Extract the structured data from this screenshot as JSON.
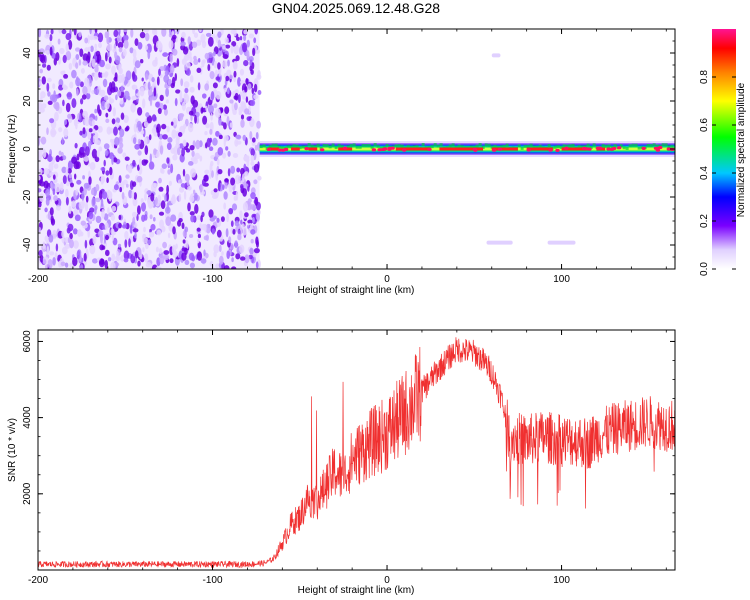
{
  "figure_title": "GN04.2025.069.12.48.G28",
  "chart_data": [
    {
      "type": "heatmap",
      "xlabel": "Height of straight line (km)",
      "ylabel": "Frequency (Hz)",
      "xlim": [
        -200,
        165
      ],
      "ylim": [
        -50,
        50
      ],
      "xticks": [
        -200,
        -100,
        0,
        100
      ],
      "yticks": [
        -40,
        -20,
        0,
        20,
        40
      ],
      "colorbar": {
        "label": "Normalized spectral amplitude",
        "range": [
          0,
          1
        ],
        "ticks": [
          "0.0",
          "0.2",
          "0.4",
          "0.6",
          "0.8"
        ],
        "colormap": [
          "#ffffff",
          "#7a00ff",
          "#0000ff",
          "#00c8ff",
          "#00ff00",
          "#ffff00",
          "#ff8000",
          "#ff0000",
          "#ff1493"
        ]
      },
      "features": {
        "noise_region_x": [
          -200,
          -73
        ],
        "noise_color": "#6a00e0",
        "signal_line_x": [
          -73,
          165
        ],
        "signal_freq_center": 0,
        "signal_peak_amplitude": 0.95,
        "faint_bands": [
          {
            "x": [
              57,
              72
            ],
            "freq": -39
          },
          {
            "x": [
              92,
              108
            ],
            "freq": -39
          },
          {
            "x": [
              60,
              65
            ],
            "freq": 39
          }
        ]
      }
    },
    {
      "type": "line",
      "xlabel": "Height of straight line (km)",
      "ylabel": "SNR (10 * v/v)",
      "xlim": [
        -200,
        165
      ],
      "ylim": [
        0,
        6300
      ],
      "xticks": [
        -200,
        -100,
        0,
        100
      ],
      "yticks": [
        2000,
        4000,
        6000
      ],
      "line_color": "#f03030",
      "series": [
        {
          "x": [
            -200,
            -150,
            -100,
            -80,
            -70,
            -65,
            -60,
            -55,
            -50,
            -45,
            -40,
            -35,
            -30,
            -25,
            -20,
            -10,
            0,
            10,
            20,
            30,
            40,
            50,
            55,
            60,
            65,
            68,
            70,
            80,
            90,
            100,
            110,
            115,
            120,
            130,
            140,
            150,
            160,
            165
          ],
          "values": [
            150,
            150,
            150,
            150,
            180,
            300,
            700,
            1200,
            1400,
            1900,
            1800,
            2200,
            2600,
            2400,
            2900,
            3300,
            3600,
            4100,
            4700,
            5300,
            5800,
            5700,
            5500,
            5200,
            4600,
            4000,
            3500,
            3400,
            3500,
            3400,
            3400,
            3300,
            3500,
            3700,
            3800,
            3900,
            3800,
            3800
          ]
        }
      ]
    }
  ]
}
